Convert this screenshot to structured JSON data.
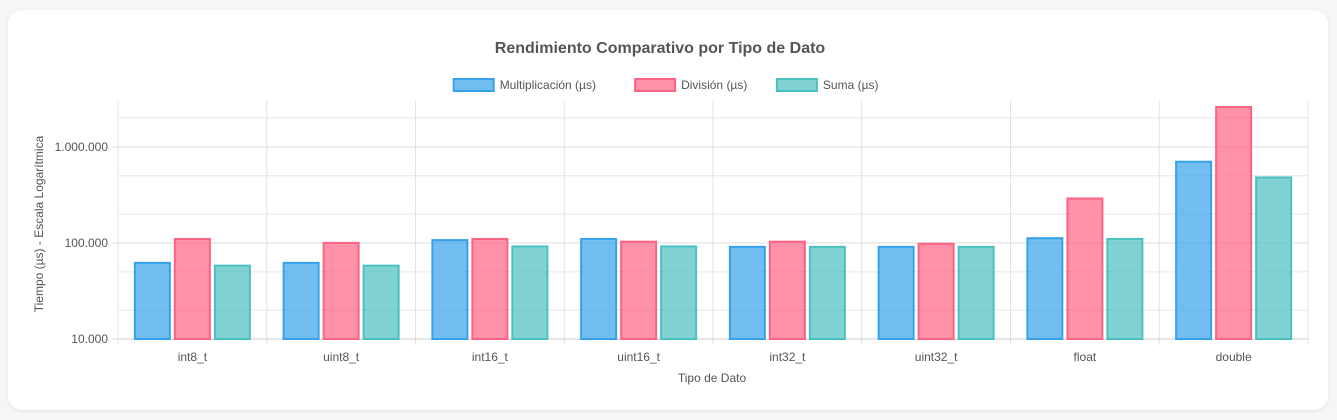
{
  "chart_data": {
    "type": "bar",
    "title": "Rendimiento Comparativo por Tipo de Dato",
    "xlabel": "Tipo de Dato",
    "ylabel": "Tiempo (µs) - Escala Logarítmica",
    "y_scale": "log",
    "ylim": [
      10000,
      3000000
    ],
    "y_ticks": [
      10000,
      100000,
      1000000
    ],
    "y_tick_labels": [
      "10.000",
      "100.000",
      "1.000.000"
    ],
    "grid": true,
    "legend_position": "top",
    "categories": [
      "int8_t",
      "uint8_t",
      "int16_t",
      "uint16_t",
      "int32_t",
      "uint32_t",
      "float",
      "double"
    ],
    "series": [
      {
        "name": "Multiplicación (µs)",
        "color": "#36a2eb",
        "fill": "rgba(54,162,235,0.7)",
        "values": [
          62000,
          62000,
          107000,
          110000,
          91000,
          91000,
          112000,
          700000
        ]
      },
      {
        "name": "División (µs)",
        "color": "#ff6384",
        "fill": "rgba(255,99,132,0.7)",
        "values": [
          110000,
          100000,
          110000,
          103000,
          103000,
          98000,
          290000,
          2600000
        ]
      },
      {
        "name": "Suma (µs)",
        "color": "#4bc0c0",
        "fill": "rgba(75,192,192,0.7)",
        "values": [
          58000,
          58000,
          92000,
          92000,
          91000,
          91000,
          110000,
          480000
        ]
      }
    ]
  }
}
